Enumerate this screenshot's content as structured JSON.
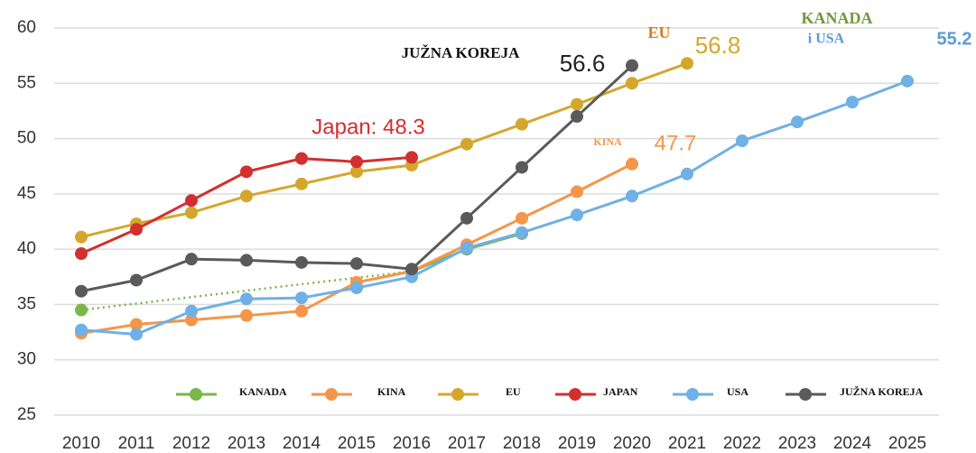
{
  "chart_data": {
    "type": "line",
    "categories": [
      "2010",
      "2011",
      "2012",
      "2013",
      "2014",
      "2015",
      "2016",
      "2017",
      "2018",
      "2019",
      "2020",
      "2021",
      "2022",
      "2023",
      "2024",
      "2025"
    ],
    "ylim": [
      25,
      60
    ],
    "yticks": [
      25,
      30,
      35,
      40,
      45,
      50,
      55,
      60
    ],
    "grid": true,
    "legend": "bottom",
    "series": [
      {
        "name": "KANADA",
        "color": "#7ab648",
        "gap_style": "dotted",
        "values": [
          34.5,
          null,
          null,
          null,
          null,
          null,
          38.0,
          40.0,
          41.4,
          null,
          null,
          null,
          null,
          null,
          null,
          null
        ]
      },
      {
        "name": "KINA",
        "color": "#f4964a",
        "values": [
          32.4,
          33.2,
          33.6,
          34.0,
          34.4,
          37.0,
          38.0,
          40.4,
          42.8,
          45.2,
          47.7,
          null,
          null,
          null,
          null,
          null
        ]
      },
      {
        "name": "EU",
        "color": "#d4a72c",
        "values": [
          41.1,
          42.3,
          43.3,
          44.8,
          45.9,
          47.0,
          47.6,
          49.5,
          51.3,
          53.1,
          55.0,
          56.8,
          null,
          null,
          null,
          null
        ]
      },
      {
        "name": "JAPAN",
        "color": "#d32f2f",
        "values": [
          39.6,
          41.8,
          44.4,
          47.0,
          48.2,
          47.9,
          48.3,
          null,
          null,
          null,
          null,
          null,
          null,
          null,
          null,
          null
        ]
      },
      {
        "name": "USA",
        "color": "#6fb0e6",
        "values": [
          32.7,
          32.3,
          34.4,
          35.5,
          35.6,
          36.5,
          37.5,
          40.1,
          41.5,
          43.1,
          44.8,
          46.8,
          49.8,
          51.5,
          53.3,
          55.2
        ]
      },
      {
        "name": "JUŽNA KOREJA",
        "color": "#5a5a5a",
        "values": [
          36.2,
          37.2,
          39.1,
          39.0,
          38.8,
          38.7,
          38.2,
          42.8,
          47.4,
          52.0,
          56.6,
          null,
          null,
          null,
          null,
          null
        ]
      }
    ],
    "annotations": [
      {
        "text": "JUŽNA KOREJA",
        "color": "#111111"
      },
      {
        "text": "56.6",
        "color": "#222222"
      },
      {
        "text": "EU",
        "color": "#e07a1a"
      },
      {
        "text": "56.8",
        "color": "#d4a72c"
      },
      {
        "text": "KANADA",
        "color": "#6f9a3a"
      },
      {
        "text": "i USA",
        "color": "#5b9bd5"
      },
      {
        "text": "55.2",
        "color": "#5b9bd5"
      },
      {
        "text": "Japan: 48.3",
        "color": "#d32f2f"
      },
      {
        "text": "KINA",
        "color": "#f4964a"
      },
      {
        "text": "47.7",
        "color": "#f4964a"
      }
    ]
  }
}
